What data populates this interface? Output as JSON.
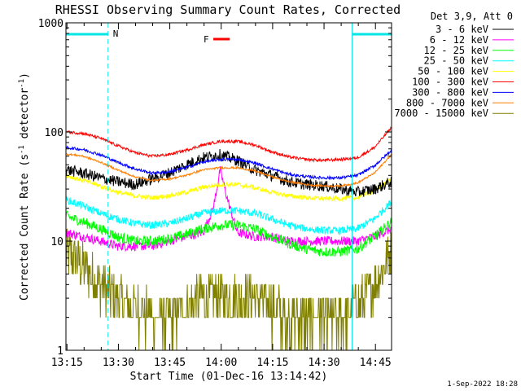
{
  "chart_data": {
    "type": "line",
    "title": "RHESSI Observing Summary Count Rates, Corrected",
    "xlabel": "Start Time (01-Dec-16 13:14:42)",
    "ylabel_main": "Corrected Count Rate (s",
    "ylabel_sup1": "-1",
    "ylabel_mid": " detector",
    "ylabel_sup2": "-1",
    "ylabel_end": ")",
    "y_scale": "log",
    "ylim": [
      1,
      1000
    ],
    "xlim_minutes": [
      0,
      95
    ],
    "x_ticks": [
      {
        "label": "13:15",
        "minutes": 0.3
      },
      {
        "label": "13:30",
        "minutes": 15.3
      },
      {
        "label": "13:45",
        "minutes": 30.3
      },
      {
        "label": "14:00",
        "minutes": 45.3
      },
      {
        "label": "14:15",
        "minutes": 60.3
      },
      {
        "label": "14:30",
        "minutes": 75.3
      },
      {
        "label": "14:45",
        "minutes": 90.3
      }
    ],
    "y_ticks": [
      {
        "label": "1",
        "value": 1
      },
      {
        "label": "10",
        "value": 10
      },
      {
        "label": "100",
        "value": 100
      },
      {
        "label": "1000",
        "value": 1000
      }
    ],
    "legend_title": "Det 3,9, Att 0",
    "legend_position": "right",
    "footer": "1-Sep-2022 18:28",
    "night_intervals": [
      {
        "label": "N",
        "start_minutes": 0,
        "end_minutes": 12.3
      },
      {
        "label": "",
        "start_minutes": 83.5,
        "end_minutes": 95
      }
    ],
    "flare_flag": {
      "label": "F",
      "start_minutes": 43.0,
      "end_minutes": 47.8,
      "color": "#ff0000"
    },
    "night_color": "#00e5e5",
    "series": [
      {
        "name": "3 - 6 keV",
        "color": "#000000",
        "x": [
          0,
          5,
          10,
          15,
          20,
          25,
          30,
          35,
          40,
          45,
          50,
          55,
          60,
          65,
          70,
          75,
          80,
          85,
          90,
          95
        ],
        "y": [
          45,
          42,
          38,
          35,
          33,
          37,
          42,
          50,
          58,
          62,
          55,
          45,
          40,
          35,
          33,
          32,
          30,
          28,
          30,
          35
        ],
        "noise": 0.12
      },
      {
        "name": "6 - 12 keV",
        "color": "#ff00ff",
        "x": [
          0,
          5,
          10,
          15,
          20,
          25,
          30,
          35,
          40,
          43,
          45,
          47,
          50,
          55,
          60,
          65,
          70,
          75,
          80,
          85,
          90,
          95
        ],
        "y": [
          12,
          11,
          10,
          9,
          9,
          9,
          10,
          11,
          12,
          20,
          45,
          25,
          12,
          11,
          11,
          10,
          10,
          10,
          10,
          10,
          11,
          13
        ],
        "noise": 0.1
      },
      {
        "name": "12 - 25 keV",
        "color": "#00ff00",
        "x": [
          0,
          5,
          10,
          15,
          20,
          25,
          30,
          35,
          40,
          45,
          50,
          55,
          60,
          65,
          70,
          75,
          80,
          85,
          90,
          95
        ],
        "y": [
          17,
          15,
          13,
          11,
          10,
          10,
          10.5,
          11.5,
          13,
          14,
          14,
          13,
          11,
          9.5,
          8.5,
          8,
          8,
          8.5,
          11,
          15
        ],
        "noise": 0.11
      },
      {
        "name": "25 - 50 keV",
        "color": "#00ffff",
        "x": [
          0,
          5,
          10,
          15,
          20,
          25,
          30,
          35,
          40,
          45,
          50,
          55,
          60,
          65,
          70,
          75,
          80,
          85,
          90,
          95
        ],
        "y": [
          24,
          21,
          18,
          16,
          14.5,
          14,
          14.5,
          16,
          18,
          19,
          19,
          18,
          16,
          14,
          13,
          12.5,
          12.5,
          13,
          16,
          23
        ],
        "noise": 0.08
      },
      {
        "name": "50 - 100 keV",
        "color": "#ffff00",
        "x": [
          0,
          5,
          10,
          15,
          20,
          25,
          30,
          35,
          40,
          45,
          50,
          55,
          60,
          65,
          70,
          75,
          80,
          85,
          90,
          95
        ],
        "y": [
          40,
          36,
          32,
          28,
          26,
          25,
          26,
          28,
          31,
          33,
          33,
          31,
          28,
          26,
          25,
          24.5,
          24.5,
          25,
          29,
          37
        ],
        "noise": 0.05
      },
      {
        "name": "100 - 300 keV",
        "color": "#ff0000",
        "x": [
          0,
          5,
          10,
          15,
          20,
          25,
          30,
          35,
          40,
          45,
          50,
          55,
          60,
          65,
          70,
          75,
          80,
          85,
          90,
          95
        ],
        "y": [
          100,
          97,
          88,
          75,
          65,
          60,
          62,
          68,
          76,
          82,
          82,
          76,
          66,
          59,
          56,
          55,
          56,
          58,
          72,
          110
        ],
        "noise": 0.03
      },
      {
        "name": "300 - 800 keV",
        "color": "#0000ff",
        "x": [
          0,
          5,
          10,
          15,
          20,
          25,
          30,
          35,
          40,
          45,
          50,
          55,
          60,
          65,
          70,
          75,
          80,
          85,
          90,
          95
        ],
        "y": [
          72,
          69,
          62,
          53,
          46,
          42,
          43,
          47,
          53,
          56,
          56,
          52,
          46,
          41,
          39,
          38,
          38,
          40,
          49,
          68
        ],
        "noise": 0.03
      },
      {
        "name": "800 - 7000 keV",
        "color": "#ff7f00",
        "x": [
          0,
          5,
          10,
          15,
          20,
          25,
          30,
          35,
          40,
          45,
          50,
          55,
          60,
          65,
          70,
          75,
          80,
          85,
          90,
          95
        ],
        "y": [
          63,
          60,
          53,
          45,
          39,
          36,
          37,
          40,
          45,
          47,
          47,
          44,
          39,
          35,
          33,
          32,
          32,
          34,
          42,
          62
        ],
        "noise": 0.02
      },
      {
        "name": "7000 - 15000 keV",
        "color": "#808000",
        "x": [
          0,
          5,
          10,
          15,
          20,
          25,
          30,
          35,
          40,
          45,
          50,
          55,
          60,
          65,
          70,
          75,
          80,
          85,
          90,
          95
        ],
        "y": [
          8,
          6,
          4,
          3,
          2.5,
          2,
          2,
          2.5,
          3,
          3,
          3,
          3,
          2.5,
          2,
          2,
          2,
          2,
          2.5,
          4,
          8
        ],
        "noise": 0.35
      }
    ]
  }
}
